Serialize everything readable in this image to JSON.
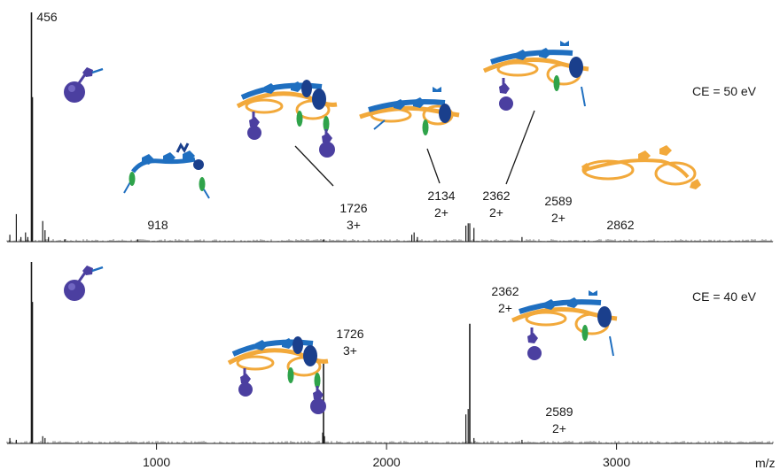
{
  "chart_data": [
    {
      "type": "line",
      "panel": "top",
      "condition_label": "CE = 50 eV",
      "xlabel": "m/z",
      "xlim": [
        350,
        3680
      ],
      "ylim": [
        0,
        100
      ],
      "peaks": [
        {
          "x": 362,
          "y": 3
        },
        {
          "x": 390,
          "y": 12
        },
        {
          "x": 410,
          "y": 2
        },
        {
          "x": 430,
          "y": 4
        },
        {
          "x": 440,
          "y": 2
        },
        {
          "x": 456,
          "y": 100
        },
        {
          "x": 460,
          "y": 63
        },
        {
          "x": 505,
          "y": 9
        },
        {
          "x": 515,
          "y": 5
        },
        {
          "x": 530,
          "y": 2
        },
        {
          "x": 600,
          "y": 1
        },
        {
          "x": 918,
          "y": 1
        },
        {
          "x": 1726,
          "y": 1
        },
        {
          "x": 2110,
          "y": 3
        },
        {
          "x": 2120,
          "y": 4
        },
        {
          "x": 2134,
          "y": 2
        },
        {
          "x": 2345,
          "y": 7
        },
        {
          "x": 2355,
          "y": 8
        },
        {
          "x": 2362,
          "y": 8
        },
        {
          "x": 2380,
          "y": 6
        },
        {
          "x": 2589,
          "y": 2
        },
        {
          "x": 2862,
          "y": 0.5
        }
      ],
      "annotations": [
        {
          "mz": "456",
          "charge": ""
        },
        {
          "mz": "918",
          "charge": ""
        },
        {
          "mz": "1726",
          "charge": "3+"
        },
        {
          "mz": "2134",
          "charge": "2+"
        },
        {
          "mz": "2362",
          "charge": "2+"
        },
        {
          "mz": "2589",
          "charge": "2+"
        },
        {
          "mz": "2862",
          "charge": ""
        }
      ]
    },
    {
      "type": "line",
      "panel": "bottom",
      "condition_label": "CE = 40 eV",
      "xlabel": "m/z",
      "xlim": [
        350,
        3680
      ],
      "ylim": [
        0,
        100
      ],
      "ticks": [
        1000,
        2000,
        3000
      ],
      "tick_labels": [
        "1000",
        "2000",
        "3000"
      ],
      "peaks": [
        {
          "x": 362,
          "y": 3
        },
        {
          "x": 390,
          "y": 2
        },
        {
          "x": 456,
          "y": 100
        },
        {
          "x": 460,
          "y": 78
        },
        {
          "x": 505,
          "y": 4
        },
        {
          "x": 515,
          "y": 3
        },
        {
          "x": 1722,
          "y": 6
        },
        {
          "x": 1726,
          "y": 44
        },
        {
          "x": 1730,
          "y": 4
        },
        {
          "x": 2345,
          "y": 16
        },
        {
          "x": 2355,
          "y": 19
        },
        {
          "x": 2362,
          "y": 66
        },
        {
          "x": 2380,
          "y": 3
        },
        {
          "x": 2589,
          "y": 2
        }
      ],
      "annotations": [
        {
          "mz": "1726",
          "charge": "3+"
        },
        {
          "mz": "2362",
          "charge": "2+"
        },
        {
          "mz": "2589",
          "charge": "2+"
        }
      ]
    }
  ],
  "colors": {
    "axis": "#1a1a1a",
    "ligand_orange": "#f2a93b",
    "ligand_blue": "#1f6fc0",
    "ligand_green": "#2fa34a",
    "cap_purple": "#4b3fa0",
    "dark_blue": "#1a3f8c"
  }
}
